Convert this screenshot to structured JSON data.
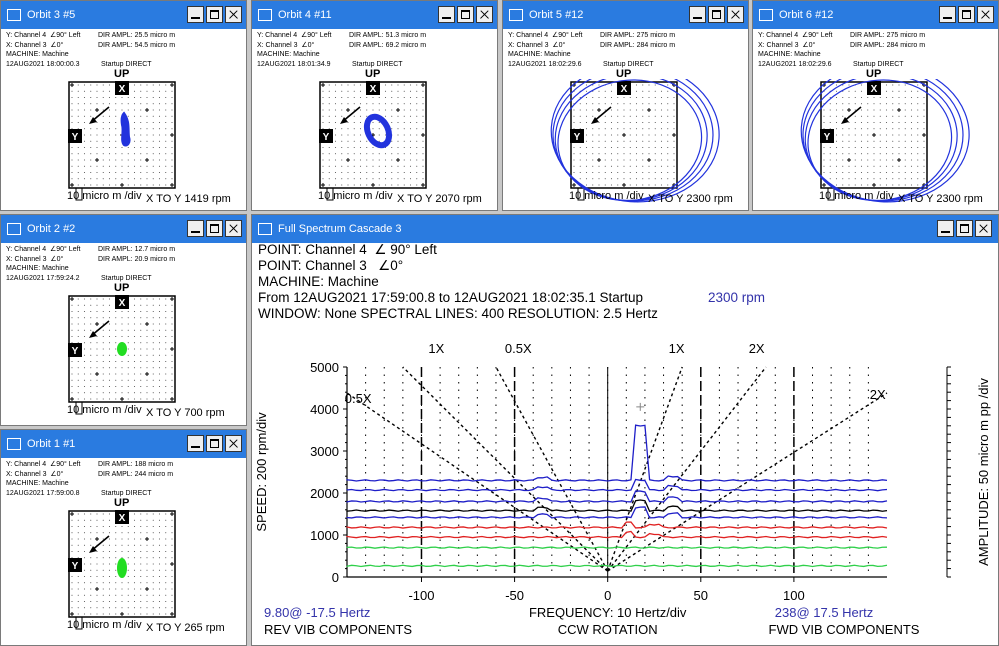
{
  "orbits": [
    {
      "id": "orbit3",
      "title": "Orbit 3 #5",
      "y_line": "Y: Channel 4",
      "y_angle": "90° Left",
      "x_line": "X: Channel 3",
      "x_angle": "0°",
      "machine": "MACHINE: Machine",
      "date": "12AUG2021  18:00:00.3",
      "y_ampl": "DIR AMPL: 25.5 micro m",
      "x_ampl": "DIR AMPL: 54.5 micro m",
      "startup": "Startup DIRECT",
      "up": "UP",
      "y_mark": "Y",
      "x_mark": "X",
      "scale": "10 micro m /div",
      "rpm": "X TO Y 1419 rpm",
      "shape": "small-blue"
    },
    {
      "id": "orbit4",
      "title": "Orbit 4 #11",
      "y_line": "Y: Channel 4",
      "y_angle": "90° Left",
      "x_line": "X: Channel 3",
      "x_angle": "0°",
      "machine": "MACHINE: Machine",
      "date": "12AUG2021  18:01:34.9",
      "y_ampl": "DIR AMPL: 51.3 micro m",
      "x_ampl": "DIR AMPL: 69.2 micro m",
      "startup": "Startup DIRECT",
      "up": "UP",
      "y_mark": "Y",
      "x_mark": "X",
      "scale": "10 micro m /div",
      "rpm": "X TO Y 2070 rpm",
      "shape": "ring-blue"
    },
    {
      "id": "orbit5",
      "title": "Orbit 5 #12",
      "y_line": "Y: Channel 4",
      "y_angle": "90° Left",
      "x_line": "X: Channel 3",
      "x_angle": "0°",
      "machine": "MACHINE: Machine",
      "date": "12AUG2021  18:02:29.6",
      "y_ampl": "DIR AMPL: 275 micro m",
      "x_ampl": "DIR AMPL: 284 micro m",
      "startup": "Startup DIRECT",
      "up": "UP",
      "y_mark": "Y",
      "x_mark": "X",
      "scale": "10 micro m /div",
      "rpm": "X TO Y 2300 rpm",
      "shape": "large-blue"
    },
    {
      "id": "orbit6",
      "title": "Orbit 6 #12",
      "y_line": "Y: Channel 4",
      "y_angle": "90° Left",
      "x_line": "X: Channel 3",
      "x_angle": "0°",
      "machine": "MACHINE: Machine",
      "date": "12AUG2021  18:02:29.6",
      "y_ampl": "DIR AMPL: 275 micro m",
      "x_ampl": "DIR AMPL: 284 micro m",
      "startup": "Startup DIRECT",
      "up": "UP",
      "y_mark": "Y",
      "x_mark": "X",
      "scale": "10 micro m /div",
      "rpm": "X TO Y 2300 rpm",
      "shape": "large-blue"
    },
    {
      "id": "orbit2",
      "title": "Orbit 2 #2",
      "y_line": "Y: Channel 4",
      "y_angle": "90° Left",
      "x_line": "X: Channel 3",
      "x_angle": "0°",
      "machine": "MACHINE: Machine",
      "date": "12AUG2021  17:59:24.2",
      "y_ampl": "DIR AMPL: 12.7 micro m",
      "x_ampl": "DIR AMPL: 20.9 micro m",
      "startup": "Startup DIRECT",
      "up": "UP",
      "y_mark": "Y",
      "x_mark": "X",
      "scale": "10 micro m /div",
      "rpm": "X TO Y 700 rpm",
      "shape": "green"
    },
    {
      "id": "orbit1",
      "title": "Orbit 1 #1",
      "y_line": "Y: Channel 4",
      "y_angle": "90° Left",
      "x_line": "X: Channel 3",
      "x_angle": "0°",
      "machine": "MACHINE: Machine",
      "date": "12AUG2021  17:59:00.8",
      "y_ampl": "DIR AMPL: 188 micro m",
      "x_ampl": "DIR AMPL: 244 micro m",
      "startup": "Startup DIRECT",
      "up": "UP",
      "y_mark": "Y",
      "x_mark": "X",
      "scale": "10 micro m /div",
      "rpm": "X TO Y 265 rpm",
      "shape": "green-tall"
    }
  ],
  "spectrum": {
    "title": "Full Spectrum Cascade 3",
    "point1": "POINT: Channel 4",
    "angle1": "90° Left",
    "point2": "POINT: Channel 3",
    "angle2": "0°",
    "machine": "MACHINE: Machine",
    "range": "From 12AUG2021 17:59:00.8 to 12AUG2021   18:02:35.1 Startup",
    "rpm": "2300 rpm",
    "window": "WINDOW: None  SPECTRAL LINES: 400  RESOLUTION: 2.5 Hertz",
    "ylabel": "SPEED: 200 rpm/div",
    "y2label": "AMPLITUDE: 50 micro m pp /div",
    "xlabel": "FREQUENCY: 10 Hertz/div",
    "rot": "CCW ROTATION",
    "rev": "REV VIB COMPONENTS",
    "fwd": "FWD VIB COMPONENTS",
    "cursor_left": "9.80@ -17.5 Hertz",
    "cursor_right": "238@ 17.5 Hertz",
    "order_labels": [
      "1X",
      "0.5X",
      "0.5X",
      "1X",
      "2X",
      "2X"
    ]
  },
  "chart_data": {
    "type": "line",
    "x_ticks": [
      -100,
      -50,
      0,
      50,
      100
    ],
    "y_ticks": [
      0,
      1000,
      2000,
      3000,
      4000,
      5000
    ],
    "xlim": [
      -140,
      150
    ],
    "ylim": [
      0,
      5000
    ],
    "grid": true,
    "baselines": [
      {
        "speed": 265,
        "color": "#2fd04a"
      },
      {
        "speed": 700,
        "color": "#2fd04a"
      },
      {
        "speed": 950,
        "color": "#e02020"
      },
      {
        "speed": 1180,
        "color": "#e02020"
      },
      {
        "speed": 1419,
        "color": "#1e1ec8"
      },
      {
        "speed": 1580,
        "color": "#000000"
      },
      {
        "speed": 1800,
        "color": "#1e1ec8"
      },
      {
        "speed": 2070,
        "color": "#1e1ec8"
      },
      {
        "speed": 2300,
        "color": "#1e1ec8"
      }
    ],
    "peak": {
      "freq": 17.5,
      "speed": 2300,
      "amplitude": 238
    }
  }
}
